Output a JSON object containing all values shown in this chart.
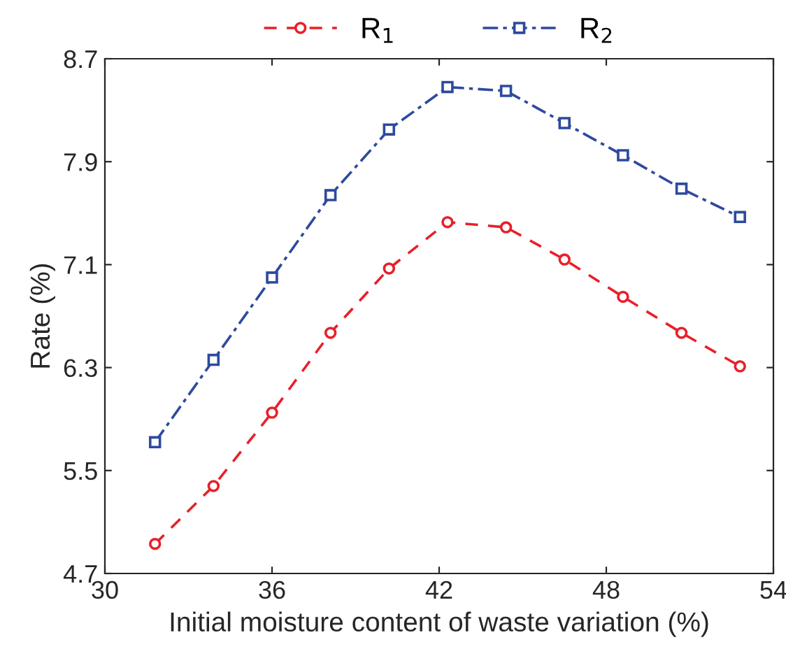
{
  "chart_data": {
    "type": "line",
    "xlabel": "Initial moisture content of waste variation (%)",
    "ylabel": "Rate (%)",
    "x": [
      31.8,
      33.9,
      36.0,
      38.1,
      40.2,
      42.3,
      44.4,
      46.5,
      48.6,
      50.7,
      52.8
    ],
    "series": [
      {
        "name": "R$_{1}$",
        "color": "#e8202a",
        "marker": "circle",
        "line_style": "dashed",
        "values": [
          4.93,
          5.38,
          5.95,
          6.57,
          7.07,
          7.43,
          7.39,
          7.14,
          6.85,
          6.57,
          6.31
        ]
      },
      {
        "name": "R$_{2}$",
        "color": "#2e4a9e",
        "marker": "square",
        "line_style": "dashdot",
        "values": [
          5.72,
          6.36,
          7.0,
          7.64,
          8.15,
          8.48,
          8.45,
          8.2,
          7.95,
          7.69,
          7.47
        ]
      }
    ],
    "xlim": [
      30,
      54
    ],
    "xticks": [
      30,
      36,
      42,
      48,
      54
    ],
    "ylim": [
      4.7,
      8.7
    ],
    "yticks": [
      4.7,
      5.5,
      6.3,
      7.1,
      7.9,
      8.7
    ],
    "grid": false,
    "legend": "top"
  }
}
